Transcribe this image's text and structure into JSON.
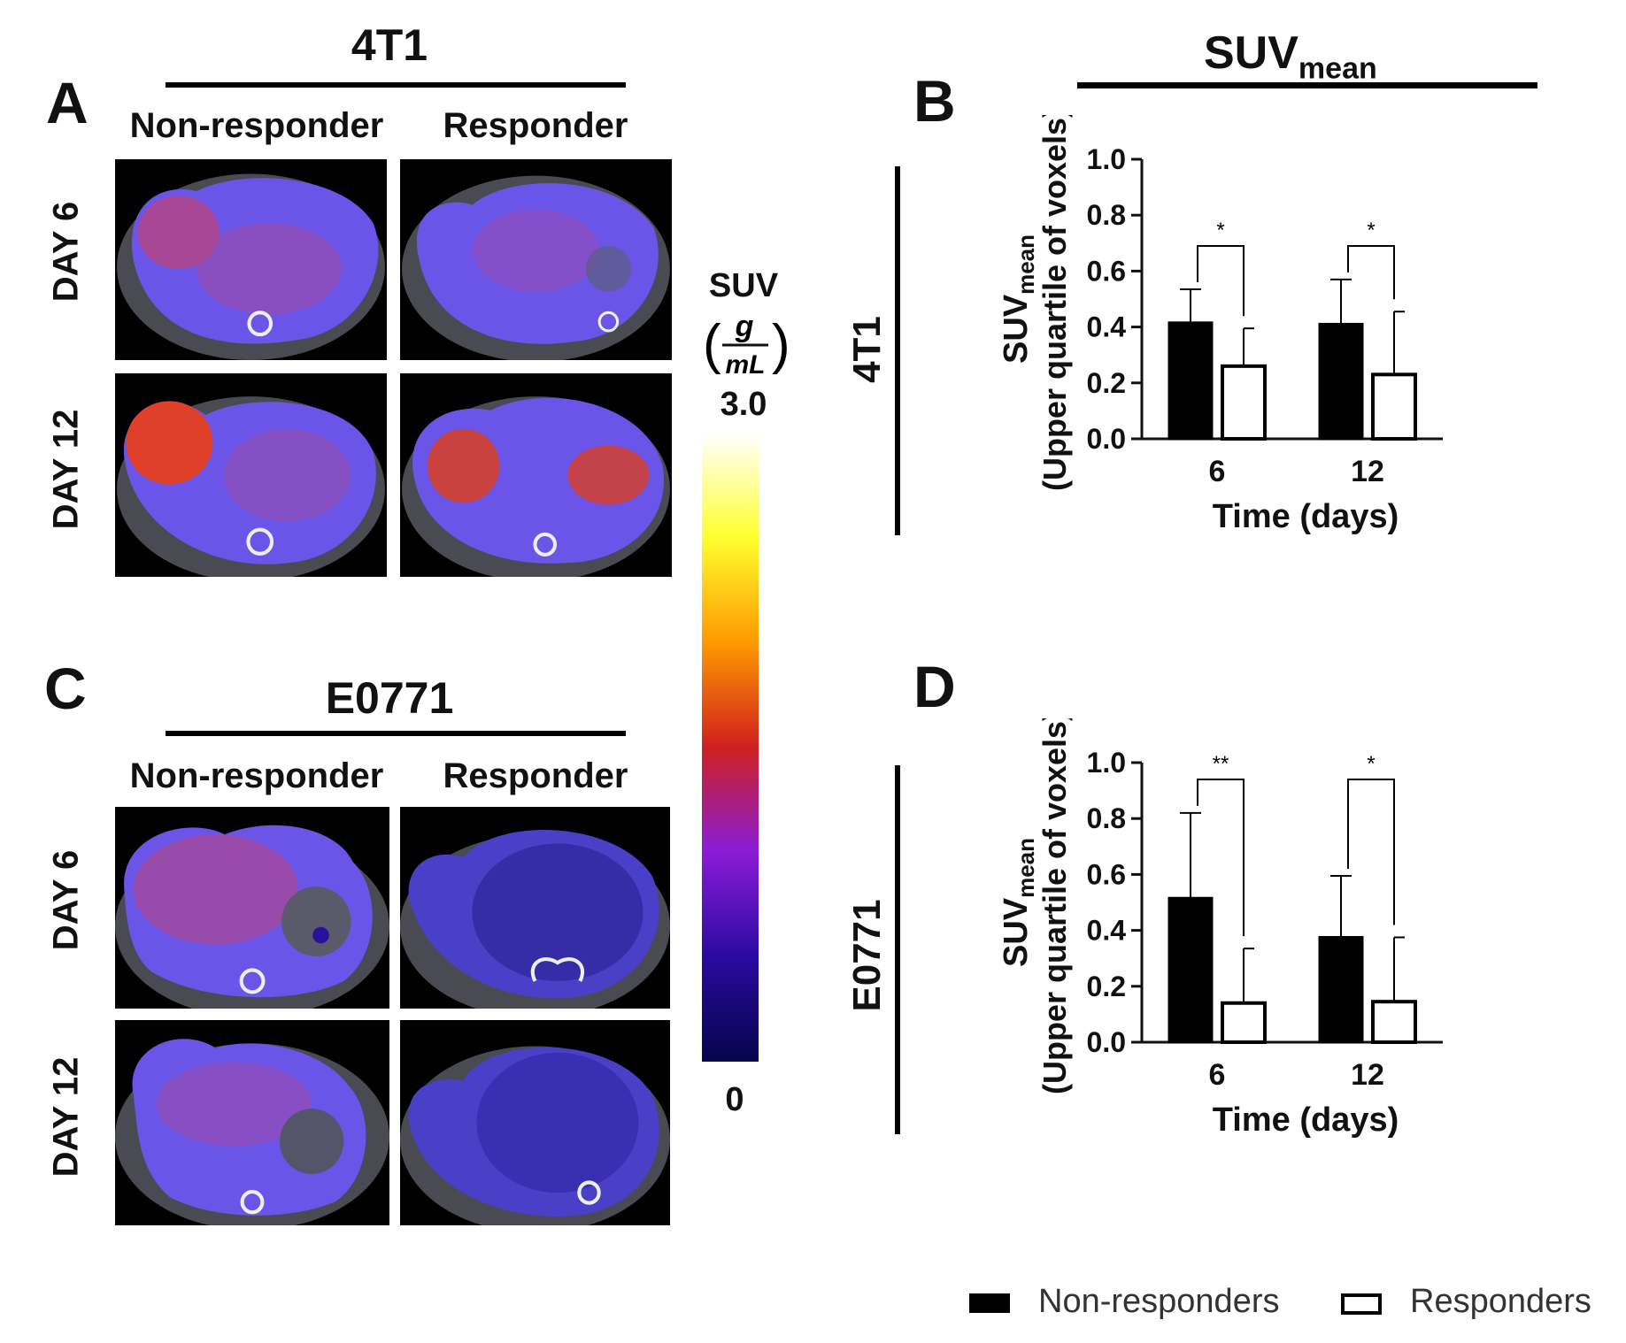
{
  "panels": {
    "A": {
      "letter": "A",
      "group": "4T1",
      "col1": "Non-responder",
      "col2": "Responder",
      "row1": "DAY 6",
      "row2": "DAY 12"
    },
    "C": {
      "letter": "C",
      "group": "E0771",
      "col1": "Non-responder",
      "col2": "Responder",
      "row1": "DAY 6",
      "row2": "DAY 12"
    },
    "B": {
      "letter": "B"
    },
    "D": {
      "letter": "D"
    }
  },
  "header_right": {
    "main": "SUV",
    "sub": "mean"
  },
  "row_labels": {
    "top": "4T1",
    "bottom": "E0771"
  },
  "colorbar": {
    "label": "SUV",
    "unit_num": "g",
    "unit_den": "mL",
    "max": "3.0",
    "min": "0",
    "colors": [
      "#ffffff",
      "#ffff30",
      "#ff9a00",
      "#d0201e",
      "#8a1cd6",
      "#2a0aa0",
      "#05054a"
    ]
  },
  "legend": {
    "nonresp": "Non-responders",
    "resp": "Responders"
  },
  "colors": {
    "nonresponder_fill": "#000000",
    "responder_fill": "#ffffff"
  },
  "chart_data": [
    {
      "id": "B",
      "type": "bar",
      "categories": [
        "6",
        "12"
      ],
      "series": [
        {
          "name": "Non-responders",
          "values": [
            0.415,
            0.41
          ],
          "errors": [
            0.12,
            0.16
          ]
        },
        {
          "name": "Responders",
          "values": [
            0.26,
            0.23
          ],
          "errors": [
            0.135,
            0.225
          ]
        }
      ],
      "ylim": [
        0,
        1.0
      ],
      "yticks": [
        "0.0",
        "0.2",
        "0.4",
        "0.6",
        "0.8",
        "1.0"
      ],
      "ylabel_main": "SUV",
      "ylabel_sub": "mean",
      "ylabel_line2": "(Upper quartile of voxels)",
      "xlabel": "Time (days)",
      "significance": [
        "*",
        "*"
      ],
      "bracket_y": [
        0.69,
        0.69
      ]
    },
    {
      "id": "D",
      "type": "bar",
      "categories": [
        "6",
        "12"
      ],
      "series": [
        {
          "name": "Non-responders",
          "values": [
            0.515,
            0.375
          ],
          "errors": [
            0.305,
            0.22
          ]
        },
        {
          "name": "Responders",
          "values": [
            0.14,
            0.145
          ],
          "errors": [
            0.195,
            0.23
          ]
        }
      ],
      "ylim": [
        0,
        1.0
      ],
      "yticks": [
        "0.0",
        "0.2",
        "0.4",
        "0.6",
        "0.8",
        "1.0"
      ],
      "ylabel_main": "SUV",
      "ylabel_sub": "mean",
      "ylabel_line2": "(Upper quartile of voxels)",
      "xlabel": "Time (days)",
      "significance": [
        "**",
        "*"
      ],
      "bracket_y": [
        0.94,
        0.94
      ]
    }
  ]
}
